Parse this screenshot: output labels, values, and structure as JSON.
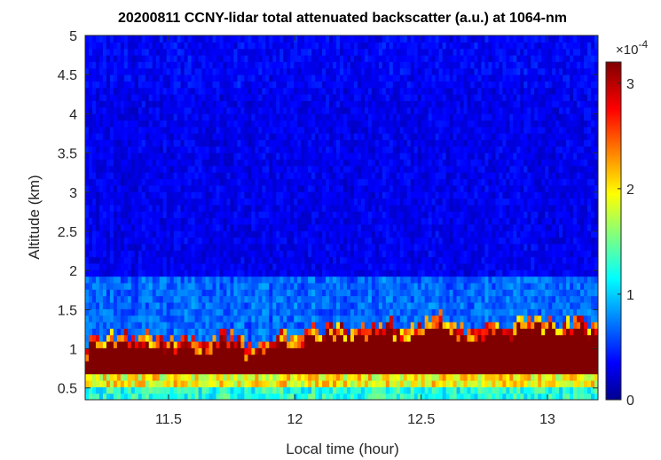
{
  "chart_data": {
    "type": "heatmap",
    "title": "20200811 CCNY-lidar total attenuated backscatter (a.u.) at 1064-nm",
    "xlabel": "Local time (hour)",
    "ylabel": "Altitude (km)",
    "xlim": [
      11.17,
      13.2
    ],
    "ylim": [
      0.35,
      5
    ],
    "xticks": [
      11.5,
      12,
      12.5,
      13
    ],
    "xtick_labels": [
      "11.5",
      "12",
      "12.5",
      "13"
    ],
    "yticks": [
      0.5,
      1,
      1.5,
      2,
      2.5,
      3,
      3.5,
      4,
      4.5,
      5
    ],
    "ytick_labels": [
      "0.5",
      "1",
      "1.5",
      "2",
      "2.5",
      "3",
      "3.5",
      "4",
      "4.5",
      "5"
    ],
    "colorbar": {
      "colormap": "jet",
      "clim": [
        0,
        3.2
      ],
      "ticks": [
        0,
        1,
        2,
        3
      ],
      "tick_labels": [
        "0",
        "1",
        "2",
        "3"
      ],
      "exponent_label": "×10",
      "exponent_power": "-4",
      "units_scale": 0.0001
    },
    "aerosol_layer": {
      "description_values": "approximate top altitude (km) of saturated boundary layer backscatter vs local time",
      "time": [
        11.17,
        11.25,
        11.33,
        11.42,
        11.5,
        11.58,
        11.67,
        11.75,
        11.83,
        11.92,
        12.0,
        12.08,
        12.17,
        12.25,
        12.33,
        12.42,
        12.5,
        12.58,
        12.67,
        12.75,
        12.83,
        12.92,
        13.0,
        13.08,
        13.2
      ],
      "top_km": [
        1.05,
        1.1,
        1.12,
        1.15,
        1.1,
        1.05,
        1.1,
        1.15,
        1.0,
        1.1,
        1.15,
        1.2,
        1.25,
        1.2,
        1.3,
        1.25,
        1.3,
        1.35,
        1.2,
        1.3,
        1.25,
        1.35,
        1.3,
        1.3,
        1.25
      ],
      "residual_layer_top_km": 1.9
    }
  }
}
